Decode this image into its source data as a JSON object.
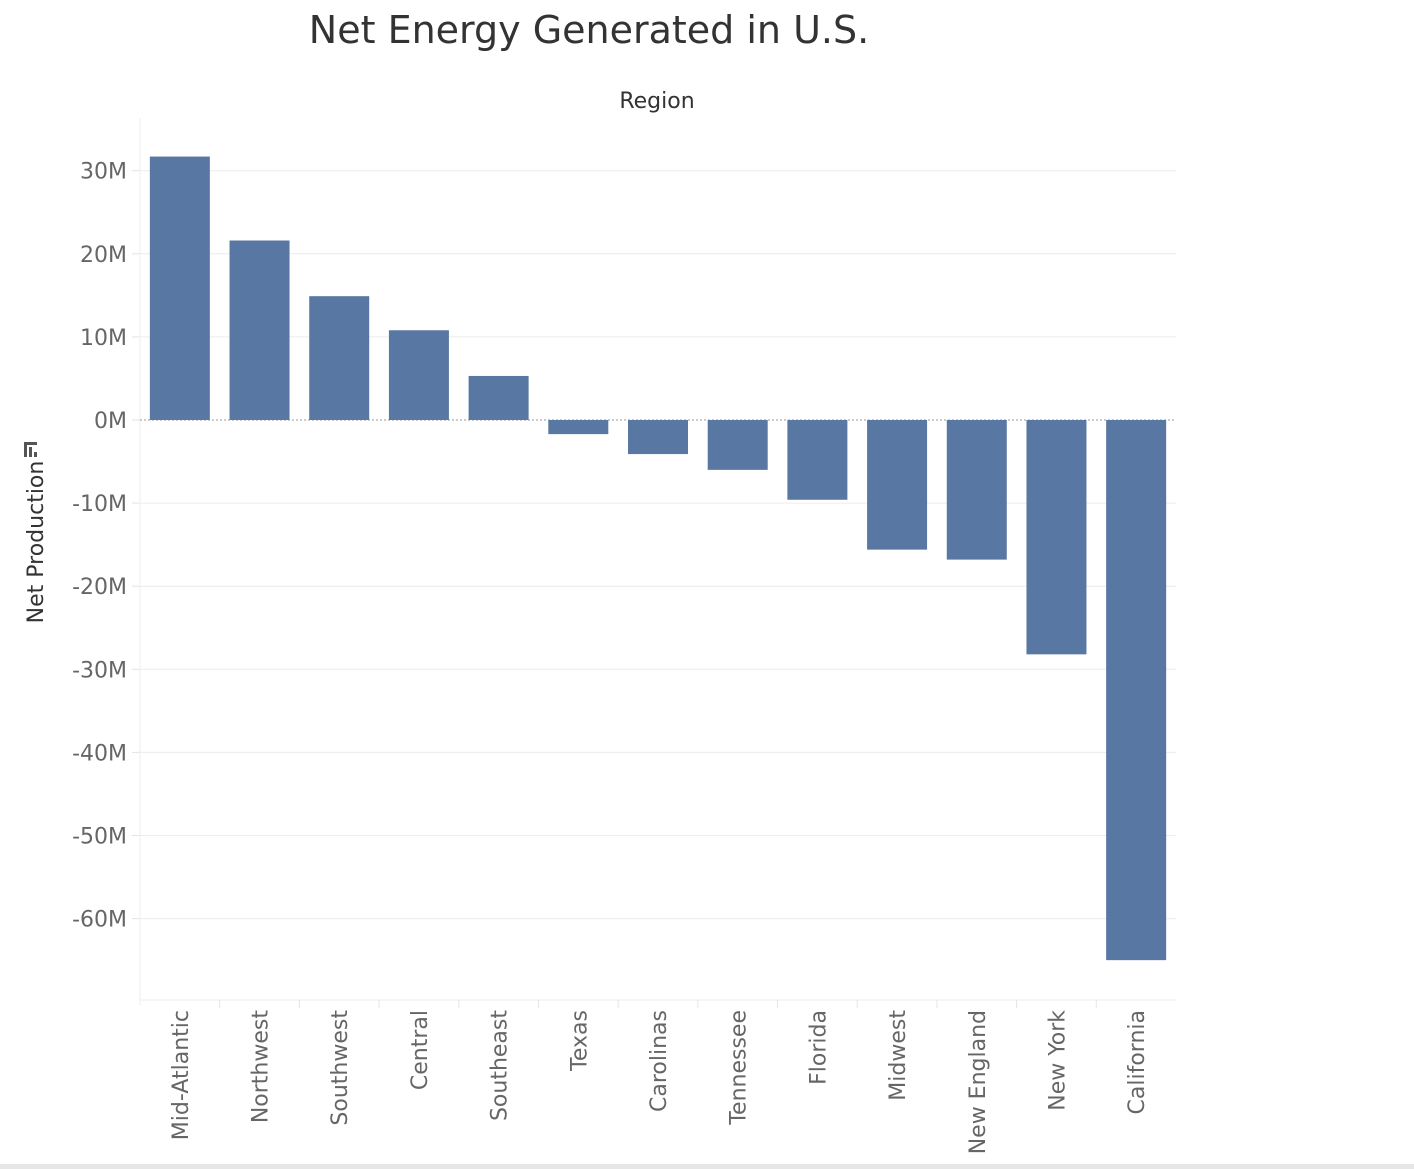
{
  "chart_data": {
    "type": "bar",
    "title": "Net Energy Generated in U.S.",
    "xlabel": "Region",
    "ylabel": "Net Production",
    "categories": [
      "Mid-Atlantic",
      "Northwest",
      "Southwest",
      "Central",
      "Southeast",
      "Texas",
      "Carolinas",
      "Tennessee",
      "Florida",
      "Midwest",
      "New England",
      "New York",
      "California"
    ],
    "values": [
      31.7,
      21.6,
      14.9,
      10.8,
      5.3,
      -1.7,
      -4.1,
      -6.0,
      -9.6,
      -15.6,
      -16.8,
      -28.2,
      -65.0
    ],
    "unit": "M",
    "ylim": [
      -70,
      36
    ],
    "yticks": [
      30,
      20,
      10,
      0,
      -10,
      -20,
      -30,
      -40,
      -50,
      -60
    ],
    "ytick_labels": [
      "30M",
      "20M",
      "10M",
      "0M",
      "-10M",
      "-20M",
      "-30M",
      "-40M",
      "-50M",
      "-60M"
    ],
    "grid": true,
    "legend": "none",
    "bar_color": "#5877a2",
    "sorted": "descending"
  }
}
